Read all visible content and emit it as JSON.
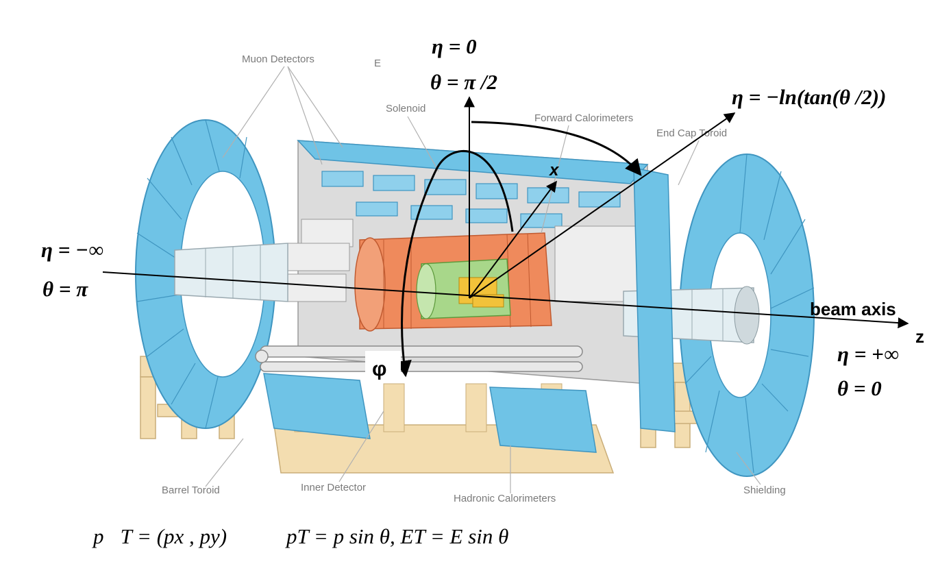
{
  "component_labels": {
    "muon_detectors": "Muon Detectors",
    "solenoid": "Solenoid",
    "forward_calorimeters": "Forward Calorimeters",
    "end_cap_toroid": "End Cap Toroid",
    "barrel_toroid": "Barrel Toroid",
    "inner_detector": "Inner Detector",
    "hadronic_calorimeters": "Hadronic Calorimeters",
    "shielding": "Shielding",
    "stray_mark": "E"
  },
  "annotations": {
    "top_eta": "η = 0",
    "top_theta": "θ = π /2",
    "eta_formula": "η = −ln(tan(θ /2))",
    "left_eta": "η = −∞",
    "left_theta": "θ = π",
    "right_eta": "η = +∞",
    "right_theta": "θ = 0",
    "beam_axis": "beam axis",
    "z_label": "z",
    "x_label": "x",
    "phi_label": "φ",
    "formula_pt_vector": "p⃗T = (px , py)",
    "formula_pt_scalar": "pT = p sin θ,   ET = E sin θ"
  },
  "colors": {
    "muon_blue": "#6fc3e6",
    "muon_edge": "#3f95c0",
    "support_tan": "#f3ddb0",
    "calorimeter_orange": "#ef8a5c",
    "inner_green": "#a8d78a",
    "core_yellow": "#f2c23a",
    "gray_body": "#dcdcdc"
  }
}
